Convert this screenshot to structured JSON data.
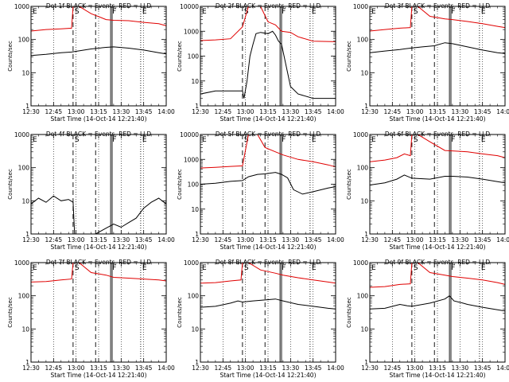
{
  "colors": {
    "events": "#000000",
    "lld": "#e00000",
    "frame": "#000000"
  },
  "common": {
    "xlabel": "Start Time (14-Oct-14 12:21:40)",
    "ylabel": "Counts/sec",
    "xtick_labels": [
      "12:30",
      "12:45",
      "13:00",
      "13:15",
      "13:30",
      "13:45",
      "14:00"
    ],
    "x_range_minutes": [
      750,
      840
    ],
    "markers": [
      {
        "t": 778,
        "style": "dashed",
        "label": "S"
      },
      {
        "t": 793,
        "style": "dashed",
        "label": ""
      },
      {
        "t": 803,
        "style": "solid",
        "label": "F"
      },
      {
        "t": 804,
        "style": "solid",
        "label": ""
      },
      {
        "t": 823,
        "style": "dotted",
        "label": "E"
      }
    ],
    "dotted_grid_minutes": [
      765,
      780,
      795,
      810,
      825
    ]
  },
  "chart_data": [
    {
      "type": "line",
      "title": "Det 1f BLACK = Events, RED = LLD",
      "ytick_labels": [
        "1",
        "10",
        "100",
        "1000"
      ],
      "ylim": [
        1,
        1000
      ],
      "yscale": "log",
      "series": [
        {
          "name": "Events",
          "color": "#000000",
          "x": [
            750,
            760,
            770,
            777,
            790,
            800,
            805,
            815,
            825,
            835,
            840
          ],
          "y": [
            33,
            36,
            40,
            42,
            52,
            58,
            60,
            55,
            48,
            40,
            37
          ]
        },
        {
          "name": "LLD",
          "color": "#e00000",
          "x": [
            750,
            760,
            770,
            777,
            778,
            782,
            790,
            800,
            805,
            815,
            825,
            835,
            840
          ],
          "y": [
            180,
            200,
            210,
            220,
            1000,
            1000,
            600,
            400,
            380,
            370,
            330,
            300,
            260
          ]
        }
      ]
    },
    {
      "type": "line",
      "title": "Det 2f BLACK = Events, RED = LLD",
      "ytick_labels": [
        "1",
        "10",
        "100",
        "1000",
        "10000"
      ],
      "ylim": [
        1,
        10000
      ],
      "yscale": "log",
      "series": [
        {
          "name": "Events",
          "color": "#000000",
          "x": [
            750,
            760,
            770,
            778,
            779,
            781,
            783,
            785,
            787,
            790,
            795,
            798,
            800,
            802,
            804,
            806,
            810,
            815,
            825,
            840
          ],
          "y": [
            3,
            4,
            4,
            4,
            2,
            10,
            100,
            300,
            800,
            900,
            800,
            1000,
            700,
            400,
            300,
            80,
            6,
            3,
            2,
            2
          ]
        },
        {
          "name": "LLD",
          "color": "#e00000",
          "x": [
            750,
            760,
            770,
            778,
            782,
            786,
            790,
            795,
            800,
            804,
            810,
            815,
            825,
            840
          ],
          "y": [
            420,
            450,
            500,
            1500,
            10000,
            10000,
            10000,
            2400,
            1800,
            1000,
            900,
            600,
            400,
            380
          ]
        }
      ]
    },
    {
      "type": "line",
      "title": "Det 3f BLACK = Events, RED = LLD",
      "ytick_labels": [
        "1",
        "10",
        "100",
        "1000"
      ],
      "ylim": [
        1,
        1000
      ],
      "yscale": "log",
      "series": [
        {
          "name": "Events",
          "color": "#000000",
          "x": [
            750,
            760,
            770,
            777,
            785,
            793,
            800,
            805,
            815,
            825,
            835,
            840
          ],
          "y": [
            40,
            45,
            50,
            55,
            60,
            65,
            80,
            75,
            60,
            48,
            40,
            38
          ]
        },
        {
          "name": "LLD",
          "color": "#e00000",
          "x": [
            750,
            760,
            770,
            777,
            778,
            782,
            790,
            800,
            805,
            815,
            825,
            835,
            840
          ],
          "y": [
            180,
            200,
            220,
            230,
            1000,
            1000,
            500,
            420,
            400,
            350,
            300,
            250,
            230
          ]
        }
      ]
    },
    {
      "type": "line",
      "title": "Det 4f BLACK = Events, RED = LLD",
      "ytick_labels": [
        "1",
        "10",
        "100",
        "1000"
      ],
      "ylim": [
        1,
        1000
      ],
      "yscale": "log",
      "series": [
        {
          "name": "Events",
          "color": "#000000",
          "x": [
            750,
            755,
            760,
            765,
            770,
            775,
            778,
            779,
            793,
            800,
            805,
            810,
            815,
            820,
            825,
            830,
            835,
            840
          ],
          "y": [
            8,
            12,
            9,
            14,
            10,
            11,
            9,
            1,
            1,
            1.5,
            2,
            1.6,
            2.2,
            3,
            6,
            9,
            12,
            8
          ]
        }
      ]
    },
    {
      "type": "line",
      "title": "Det 5f BLACK = Events, RED = LLD",
      "ytick_labels": [
        "1",
        "10",
        "100",
        "1000",
        "10000"
      ],
      "ylim": [
        1,
        10000
      ],
      "yscale": "log",
      "series": [
        {
          "name": "Events",
          "color": "#000000",
          "x": [
            750,
            760,
            770,
            778,
            782,
            788,
            793,
            800,
            804,
            808,
            812,
            818,
            825,
            835,
            840
          ],
          "y": [
            100,
            110,
            130,
            140,
            200,
            250,
            260,
            300,
            250,
            180,
            60,
            40,
            50,
            70,
            80
          ]
        },
        {
          "name": "LLD",
          "color": "#e00000",
          "x": [
            750,
            760,
            770,
            778,
            782,
            788,
            793,
            800,
            805,
            815,
            825,
            835,
            840
          ],
          "y": [
            450,
            480,
            520,
            550,
            10000,
            10000,
            3000,
            2000,
            1500,
            1000,
            800,
            600,
            500
          ]
        }
      ]
    },
    {
      "type": "line",
      "title": "Det 6f BLACK = Events, RED = LLD",
      "ytick_labels": [
        "1",
        "10",
        "100",
        "1000"
      ],
      "ylim": [
        1,
        1000
      ],
      "yscale": "log",
      "series": [
        {
          "name": "Events",
          "color": "#000000",
          "x": [
            750,
            760,
            768,
            773,
            778,
            790,
            800,
            805,
            815,
            825,
            835,
            840
          ],
          "y": [
            30,
            35,
            45,
            60,
            48,
            45,
            55,
            55,
            52,
            45,
            38,
            35
          ]
        },
        {
          "name": "LLD",
          "color": "#e00000",
          "x": [
            750,
            760,
            768,
            773,
            777,
            778,
            782,
            790,
            800,
            805,
            815,
            825,
            835,
            840
          ],
          "y": [
            150,
            170,
            200,
            260,
            230,
            1000,
            1000,
            600,
            330,
            320,
            300,
            260,
            230,
            200
          ]
        }
      ]
    },
    {
      "type": "line",
      "title": "Det 7f BLACK = Events, RED = LLD",
      "ytick_labels": [
        "1",
        "10",
        "100",
        "1000"
      ],
      "ylim": [
        1,
        1000
      ],
      "yscale": "log",
      "series": [
        {
          "name": "Events",
          "color": "#000000",
          "x": [],
          "y": []
        },
        {
          "name": "LLD",
          "color": "#e00000",
          "x": [
            750,
            760,
            770,
            777,
            778,
            782,
            790,
            800,
            805,
            815,
            825,
            835,
            840
          ],
          "y": [
            260,
            270,
            300,
            320,
            1000,
            1000,
            500,
            420,
            360,
            340,
            320,
            300,
            280
          ]
        }
      ]
    },
    {
      "type": "line",
      "title": "Det 8f BLACK = Events, RED = LLD",
      "ytick_labels": [
        "1",
        "10",
        "100",
        "1000"
      ],
      "ylim": [
        1,
        1000
      ],
      "yscale": "log",
      "series": [
        {
          "name": "Events",
          "color": "#000000",
          "x": [
            750,
            760,
            770,
            775,
            778,
            785,
            793,
            800,
            805,
            815,
            825,
            835,
            840
          ],
          "y": [
            45,
            48,
            60,
            70,
            65,
            70,
            75,
            80,
            70,
            55,
            48,
            42,
            40
          ]
        },
        {
          "name": "LLD",
          "color": "#e00000",
          "x": [
            750,
            760,
            770,
            777,
            778,
            782,
            790,
            800,
            805,
            815,
            825,
            835,
            840
          ],
          "y": [
            240,
            250,
            280,
            300,
            1000,
            1000,
            600,
            480,
            420,
            350,
            300,
            260,
            240
          ]
        }
      ]
    },
    {
      "type": "line",
      "title": "Det 9f BLACK = Events, RED = LLD",
      "ytick_labels": [
        "1",
        "10",
        "100",
        "1000"
      ],
      "ylim": [
        1,
        1000
      ],
      "yscale": "log",
      "series": [
        {
          "name": "Events",
          "color": "#000000",
          "x": [
            750,
            760,
            770,
            775,
            778,
            790,
            800,
            803,
            806,
            812,
            815,
            825,
            835,
            840
          ],
          "y": [
            40,
            42,
            55,
            50,
            48,
            60,
            80,
            100,
            70,
            60,
            55,
            45,
            38,
            35
          ]
        },
        {
          "name": "LLD",
          "color": "#e00000",
          "x": [
            750,
            760,
            770,
            777,
            778,
            782,
            790,
            800,
            805,
            815,
            825,
            835,
            840
          ],
          "y": [
            180,
            190,
            220,
            230,
            1000,
            1000,
            500,
            420,
            380,
            340,
            300,
            250,
            220
          ]
        }
      ]
    }
  ]
}
